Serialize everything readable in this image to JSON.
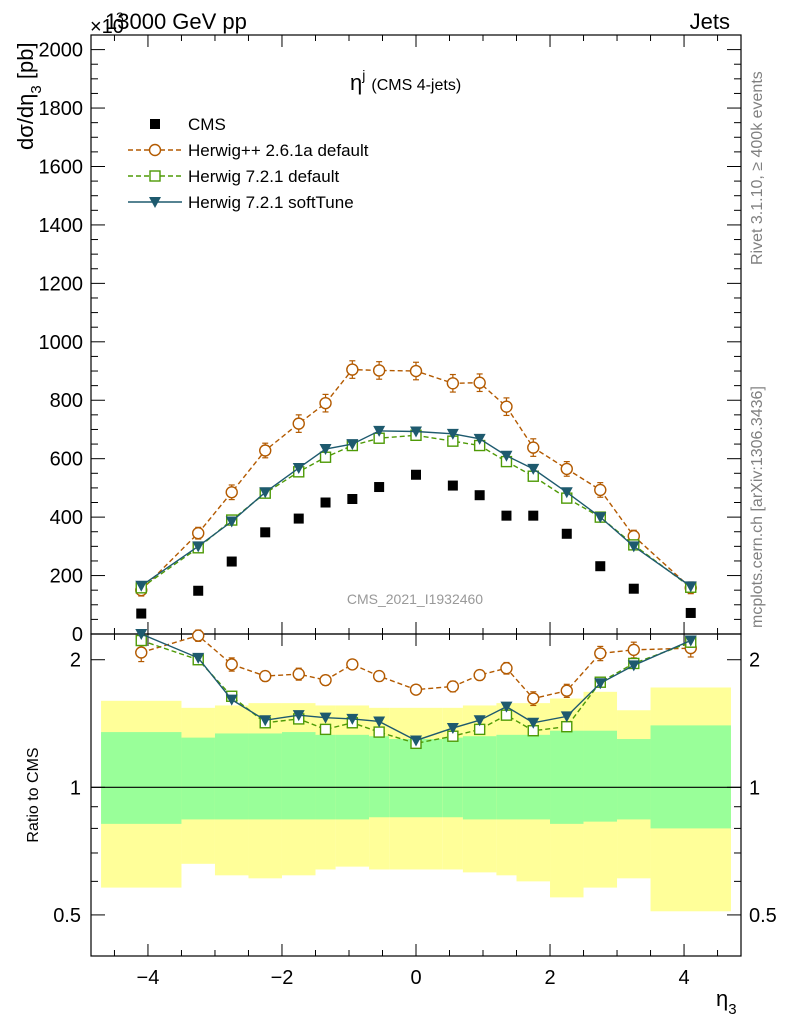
{
  "header": {
    "left": "13000 GeV pp",
    "right": "Jets",
    "exponent_prefix": "×10",
    "exponent": "3"
  },
  "side_text": {
    "rivet": "Rivet 3.1.10, ≥ 400k events",
    "mcplots": "mcplots.cern.ch [arXiv:1306.3436]"
  },
  "watermark": "CMS_2021_I1932460",
  "colors": {
    "cms": "#000000",
    "herwigpp": "#b35a00",
    "herwig721": "#4e9a06",
    "softtune": "#1e5a6e",
    "band_inner": "#99ff99",
    "band_outer": "#ffff99"
  },
  "chart_data": [
    {
      "type": "scatter",
      "title": "η^j (CMS 4-jets)",
      "title_main": "η",
      "title_sup": "j",
      "title_rest": "(CMS 4-jets)",
      "ylabel": "dσ/dη_3 [pb]",
      "ylabel_parts": [
        "dσ/dη",
        "3",
        " [pb]"
      ],
      "xlim": [
        -4.85,
        4.85
      ],
      "ylim": [
        0,
        2050
      ],
      "y_scale_factor": 1000,
      "yticks": [
        0,
        200,
        400,
        600,
        800,
        1000,
        1200,
        1400,
        1600,
        1800,
        2000
      ],
      "ytick_labels": [
        "0",
        "200",
        "400",
        "600",
        "800",
        "1000",
        "1200",
        "1400",
        "1600",
        "1800",
        "2000"
      ],
      "legend_position": "top-left",
      "x": [
        -4.1,
        -3.25,
        -2.75,
        -2.25,
        -1.75,
        -1.35,
        -0.95,
        -0.55,
        0.0,
        0.55,
        0.95,
        1.35,
        1.75,
        2.25,
        2.75,
        3.25,
        4.1
      ],
      "series": [
        {
          "name": "CMS",
          "marker": "filled-square",
          "values": [
            70,
            148,
            248,
            348,
            395,
            450,
            462,
            503,
            545,
            508,
            475,
            405,
            405,
            343,
            232,
            155,
            72
          ]
        },
        {
          "name": "Herwig++ 2.6.1a default",
          "marker": "open-circle",
          "line": "dashed",
          "values": [
            150,
            345,
            485,
            628,
            720,
            790,
            905,
            902,
            900,
            858,
            860,
            778,
            638,
            565,
            493,
            335,
            158
          ],
          "errors": [
            20,
            20,
            25,
            25,
            30,
            30,
            30,
            30,
            30,
            30,
            30,
            30,
            30,
            25,
            25,
            20,
            20
          ]
        },
        {
          "name": "Herwig 7.2.1 default",
          "marker": "open-square",
          "line": "dashed",
          "values": [
            158,
            295,
            390,
            482,
            555,
            605,
            645,
            670,
            680,
            660,
            645,
            590,
            540,
            465,
            400,
            305,
            160
          ],
          "errors": [
            10,
            10,
            10,
            10,
            12,
            12,
            12,
            12,
            12,
            12,
            12,
            12,
            12,
            10,
            10,
            10,
            10
          ]
        },
        {
          "name": "Herwig 7.2.1 softTune",
          "marker": "filled-triangle-down",
          "line": "solid",
          "values": [
            165,
            300,
            385,
            485,
            568,
            633,
            650,
            695,
            693,
            685,
            668,
            610,
            565,
            485,
            400,
            300,
            163
          ]
        }
      ]
    },
    {
      "type": "line",
      "ylabel": "Ratio to CMS",
      "xlabel": "η_3",
      "xlabel_main": "η",
      "xlabel_sub": "3",
      "xlim": [
        -4.85,
        4.85
      ],
      "ylim": [
        0.4,
        2.3
      ],
      "yticks": [
        0.5,
        1,
        2
      ],
      "ytick_labels": [
        "0.5",
        "1",
        "2"
      ],
      "xticks": [
        -4,
        -2,
        0,
        2,
        4
      ],
      "xtick_labels": [
        "−4",
        "−2",
        "0",
        "2",
        "4"
      ],
      "bins": [
        [
          -4.7,
          -3.5
        ],
        [
          -3.5,
          -3.0
        ],
        [
          -3.0,
          -2.5
        ],
        [
          -2.5,
          -2.0
        ],
        [
          -2.0,
          -1.5
        ],
        [
          -1.5,
          -1.2
        ],
        [
          -1.2,
          -0.7
        ],
        [
          -0.7,
          -0.4
        ],
        [
          -0.4,
          0.4
        ],
        [
          0.4,
          0.7
        ],
        [
          0.7,
          1.2
        ],
        [
          1.2,
          1.5
        ],
        [
          1.5,
          2.0
        ],
        [
          2.0,
          2.5
        ],
        [
          2.5,
          3.0
        ],
        [
          3.0,
          3.5
        ],
        [
          3.5,
          4.7
        ]
      ],
      "band_outer_low": [
        0.58,
        0.66,
        0.62,
        0.61,
        0.62,
        0.64,
        0.65,
        0.64,
        0.64,
        0.64,
        0.63,
        0.62,
        0.6,
        0.55,
        0.58,
        0.61,
        0.51
      ],
      "band_outer_high": [
        1.6,
        1.54,
        1.56,
        1.58,
        1.58,
        1.56,
        1.56,
        1.54,
        1.54,
        1.54,
        1.56,
        1.58,
        1.58,
        1.62,
        1.68,
        1.52,
        1.72
      ],
      "band_inner_low": [
        0.82,
        0.84,
        0.84,
        0.84,
        0.84,
        0.84,
        0.84,
        0.85,
        0.85,
        0.85,
        0.84,
        0.84,
        0.84,
        0.82,
        0.83,
        0.84,
        0.8
      ],
      "band_inner_high": [
        1.35,
        1.31,
        1.34,
        1.34,
        1.35,
        1.33,
        1.33,
        1.32,
        1.3,
        1.31,
        1.32,
        1.33,
        1.33,
        1.36,
        1.36,
        1.3,
        1.4
      ],
      "x": [
        -4.1,
        -3.25,
        -2.75,
        -2.25,
        -1.75,
        -1.35,
        -0.95,
        -0.55,
        0.0,
        0.55,
        0.95,
        1.35,
        1.75,
        2.25,
        2.75,
        3.25,
        4.1
      ],
      "series": [
        {
          "name": "Herwig++ 2.6.1a default",
          "values": [
            2.08,
            2.28,
            1.95,
            1.83,
            1.85,
            1.79,
            1.95,
            1.83,
            1.7,
            1.73,
            1.84,
            1.91,
            1.62,
            1.69,
            2.07,
            2.11,
            2.13
          ],
          "errors": [
            0.1,
            0.07,
            0.07,
            0.05,
            0.06,
            0.05,
            0.05,
            0.05,
            0.04,
            0.05,
            0.05,
            0.06,
            0.06,
            0.06,
            0.08,
            0.09,
            0.1
          ]
        },
        {
          "name": "Herwig 7.2.1 default",
          "values": [
            2.22,
            2.0,
            1.64,
            1.42,
            1.45,
            1.37,
            1.42,
            1.35,
            1.27,
            1.32,
            1.37,
            1.48,
            1.36,
            1.39,
            1.77,
            1.96,
            2.2
          ],
          "errors": [
            0.06,
            0.04,
            0.03,
            0.03,
            0.03,
            0.03,
            0.03,
            0.03,
            0.02,
            0.03,
            0.03,
            0.03,
            0.03,
            0.03,
            0.04,
            0.05,
            0.06
          ]
        },
        {
          "name": "Herwig 7.2.1 softTune",
          "values": [
            2.3,
            2.02,
            1.61,
            1.44,
            1.48,
            1.46,
            1.45,
            1.43,
            1.29,
            1.38,
            1.44,
            1.55,
            1.42,
            1.47,
            1.76,
            1.94,
            2.22
          ]
        }
      ]
    }
  ]
}
